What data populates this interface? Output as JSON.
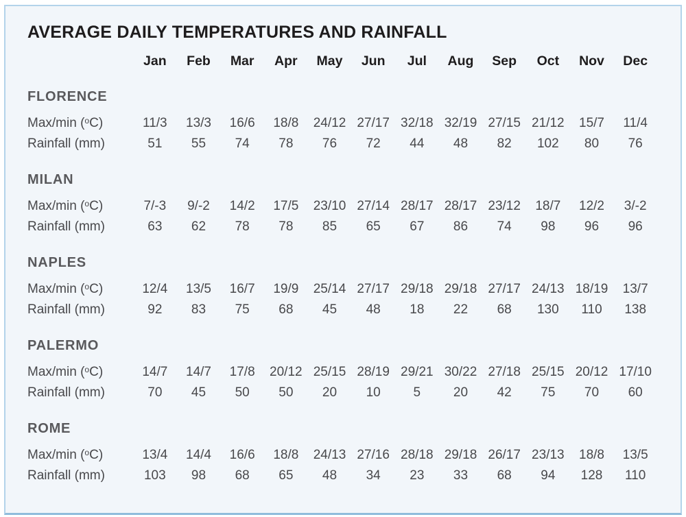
{
  "title": "AVERAGE DAILY TEMPERATURES AND RAINFALL",
  "months": [
    "Jan",
    "Feb",
    "Mar",
    "Apr",
    "May",
    "Jun",
    "Jul",
    "Aug",
    "Sep",
    "Oct",
    "Nov",
    "Dec"
  ],
  "labels": {
    "temp_pre": "Max/min (",
    "temp_deg": "o",
    "temp_post": "C)",
    "rain": "Rainfall (mm)"
  },
  "cities": [
    {
      "name": "FLORENCE",
      "temps": [
        "11/3",
        "13/3",
        "16/6",
        "18/8",
        "24/12",
        "27/17",
        "32/18",
        "32/19",
        "27/15",
        "21/12",
        "15/7",
        "11/4"
      ],
      "rain": [
        "51",
        "55",
        "74",
        "78",
        "76",
        "72",
        "44",
        "48",
        "82",
        "102",
        "80",
        "76"
      ]
    },
    {
      "name": "MILAN",
      "temps": [
        "7/-3",
        "9/-2",
        "14/2",
        "17/5",
        "23/10",
        "27/14",
        "28/17",
        "28/17",
        "23/12",
        "18/7",
        "12/2",
        "3/-2"
      ],
      "rain": [
        "63",
        "62",
        "78",
        "78",
        "85",
        "65",
        "67",
        "86",
        "74",
        "98",
        "96",
        "96"
      ]
    },
    {
      "name": "NAPLES",
      "temps": [
        "12/4",
        "13/5",
        "16/7",
        "19/9",
        "25/14",
        "27/17",
        "29/18",
        "29/18",
        "27/17",
        "24/13",
        "18/19",
        "13/7"
      ],
      "rain": [
        "92",
        "83",
        "75",
        "68",
        "45",
        "48",
        "18",
        "22",
        "68",
        "130",
        "110",
        "138"
      ]
    },
    {
      "name": "PALERMO",
      "temps": [
        "14/7",
        "14/7",
        "17/8",
        "20/12",
        "25/15",
        "28/19",
        "29/21",
        "30/22",
        "27/18",
        "25/15",
        "20/12",
        "17/10"
      ],
      "rain": [
        "70",
        "45",
        "50",
        "50",
        "20",
        "10",
        "5",
        "20",
        "42",
        "75",
        "70",
        "60"
      ]
    },
    {
      "name": "ROME",
      "temps": [
        "13/4",
        "14/4",
        "16/6",
        "18/8",
        "24/13",
        "27/16",
        "28/18",
        "29/18",
        "26/17",
        "23/13",
        "18/8",
        "13/5"
      ],
      "rain": [
        "103",
        "98",
        "68",
        "65",
        "48",
        "34",
        "23",
        "33",
        "68",
        "94",
        "128",
        "110"
      ]
    }
  ],
  "colors": {
    "panel_background": "#f2f6fa",
    "panel_border": "#b3d3ea",
    "panel_border_bottom": "#8fbcdc",
    "title_text": "#1e1c1d",
    "city_text": "#59595c",
    "data_text": "#48484b"
  },
  "chart_data": {
    "type": "table",
    "title": "AVERAGE DAILY TEMPERATURES AND RAINFALL",
    "columns": [
      "Jan",
      "Feb",
      "Mar",
      "Apr",
      "May",
      "Jun",
      "Jul",
      "Aug",
      "Sep",
      "Oct",
      "Nov",
      "Dec"
    ],
    "row_groups": [
      {
        "city": "FLORENCE",
        "max_min_c": [
          "11/3",
          "13/3",
          "16/6",
          "18/8",
          "24/12",
          "27/17",
          "32/18",
          "32/19",
          "27/15",
          "21/12",
          "15/7",
          "11/4"
        ],
        "rainfall_mm": [
          51,
          55,
          74,
          78,
          76,
          72,
          44,
          48,
          82,
          102,
          80,
          76
        ]
      },
      {
        "city": "MILAN",
        "max_min_c": [
          "7/-3",
          "9/-2",
          "14/2",
          "17/5",
          "23/10",
          "27/14",
          "28/17",
          "28/17",
          "23/12",
          "18/7",
          "12/2",
          "3/-2"
        ],
        "rainfall_mm": [
          63,
          62,
          78,
          78,
          85,
          65,
          67,
          86,
          74,
          98,
          96,
          96
        ]
      },
      {
        "city": "NAPLES",
        "max_min_c": [
          "12/4",
          "13/5",
          "16/7",
          "19/9",
          "25/14",
          "27/17",
          "29/18",
          "29/18",
          "27/17",
          "24/13",
          "18/19",
          "13/7"
        ],
        "rainfall_mm": [
          92,
          83,
          75,
          68,
          45,
          48,
          18,
          22,
          68,
          130,
          110,
          138
        ]
      },
      {
        "city": "PALERMO",
        "max_min_c": [
          "14/7",
          "14/7",
          "17/8",
          "20/12",
          "25/15",
          "28/19",
          "29/21",
          "30/22",
          "27/18",
          "25/15",
          "20/12",
          "17/10"
        ],
        "rainfall_mm": [
          70,
          45,
          50,
          50,
          20,
          10,
          5,
          20,
          42,
          75,
          70,
          60
        ]
      },
      {
        "city": "ROME",
        "max_min_c": [
          "13/4",
          "14/4",
          "16/6",
          "18/8",
          "24/13",
          "27/16",
          "28/18",
          "29/18",
          "26/17",
          "23/13",
          "18/8",
          "13/5"
        ],
        "rainfall_mm": [
          103,
          98,
          68,
          65,
          48,
          34,
          23,
          33,
          68,
          94,
          128,
          110
        ]
      }
    ]
  }
}
